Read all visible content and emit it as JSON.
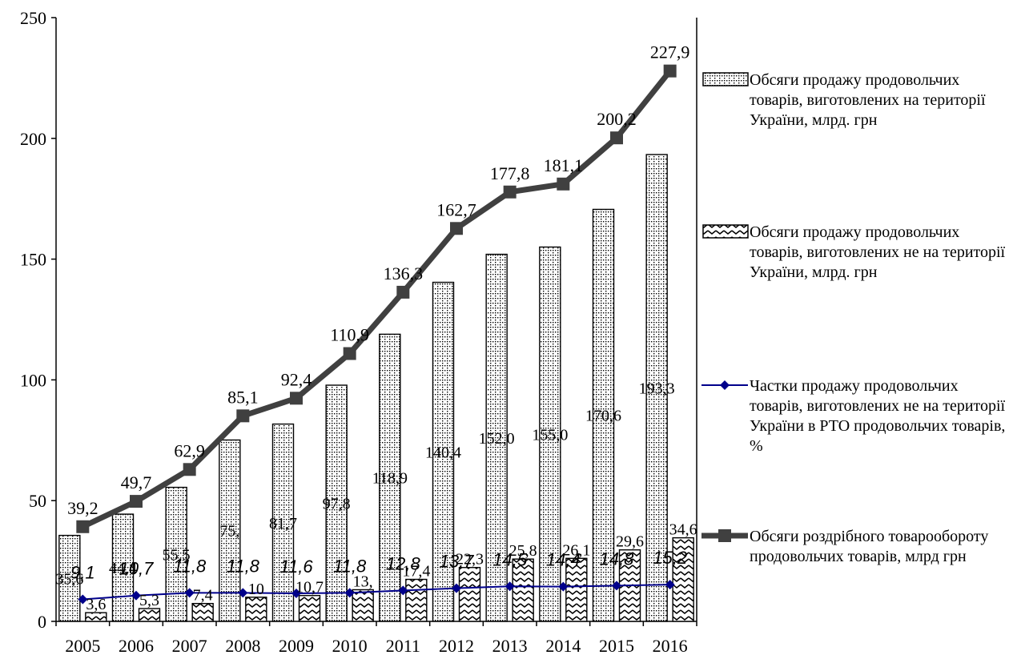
{
  "chart_data": {
    "type": "bar+line",
    "categories": [
      "2005",
      "2006",
      "2007",
      "2008",
      "2009",
      "2010",
      "2011",
      "2012",
      "2013",
      "2014",
      "2015",
      "2016"
    ],
    "ylim": [
      0,
      250
    ],
    "yticks": [
      0,
      50,
      100,
      150,
      200,
      250
    ],
    "grid": false,
    "legend_position": "right",
    "series": [
      {
        "name": "Обсяги продажу продовольчих товарів, виготовлених на території України, млрд. грн",
        "type": "bar",
        "pattern": "dotted-grid",
        "values": [
          35.6,
          44.4,
          55.5,
          75.1,
          81.7,
          97.8,
          118.9,
          140.4,
          152.0,
          155.0,
          170.6,
          193.3
        ],
        "labels": [
          "35,6",
          "44,4",
          "55,5",
          "75,",
          "81,7",
          "97,8",
          "118,9",
          "140,4",
          "152,0",
          "155,0",
          "170,6",
          "193,3"
        ]
      },
      {
        "name": "Обсяги продажу продовольчих товарів, виготовлених не на території України, млрд. грн",
        "type": "bar",
        "pattern": "zigzag",
        "values": [
          3.6,
          5.3,
          7.4,
          10.0,
          10.7,
          13.1,
          17.4,
          22.3,
          25.8,
          26.1,
          29.6,
          34.6
        ],
        "labels": [
          "3,6",
          "5,3",
          "7,4",
          "10",
          "10,7",
          "13,",
          "17,4",
          "22,3",
          "25,8",
          "26,1",
          "29,6",
          "34,6"
        ]
      },
      {
        "name": "Частки продажу продовольчих товарів, виготовлених не на території України в РТО продовольчих товарів, %",
        "type": "line",
        "color": "#00008b",
        "marker": "diamond",
        "values": [
          9.1,
          10.7,
          11.8,
          11.8,
          11.6,
          11.8,
          12.8,
          13.7,
          14.5,
          14.4,
          14.8,
          15.2
        ],
        "labels": [
          "9,1",
          "10,7",
          "11,8",
          "11,8",
          "11,6",
          "11,8",
          "12,8",
          "13,7",
          "14,5",
          "14,4",
          "14,8",
          "15,2"
        ]
      },
      {
        "name": "Обсяги роздрібного товарообороту продовольчих товарів, млрд грн",
        "type": "line",
        "color": "#404040",
        "marker": "square",
        "values": [
          39.2,
          49.7,
          62.9,
          85.1,
          92.4,
          110.9,
          136.3,
          162.7,
          177.8,
          181.1,
          200.2,
          227.9
        ],
        "labels": [
          "39,2",
          "49,7",
          "62,9",
          "85,1",
          "92,4",
          "110,9",
          "136,3",
          "162,7",
          "177,8",
          "181,1",
          "200,2",
          "227,9"
        ]
      }
    ]
  }
}
